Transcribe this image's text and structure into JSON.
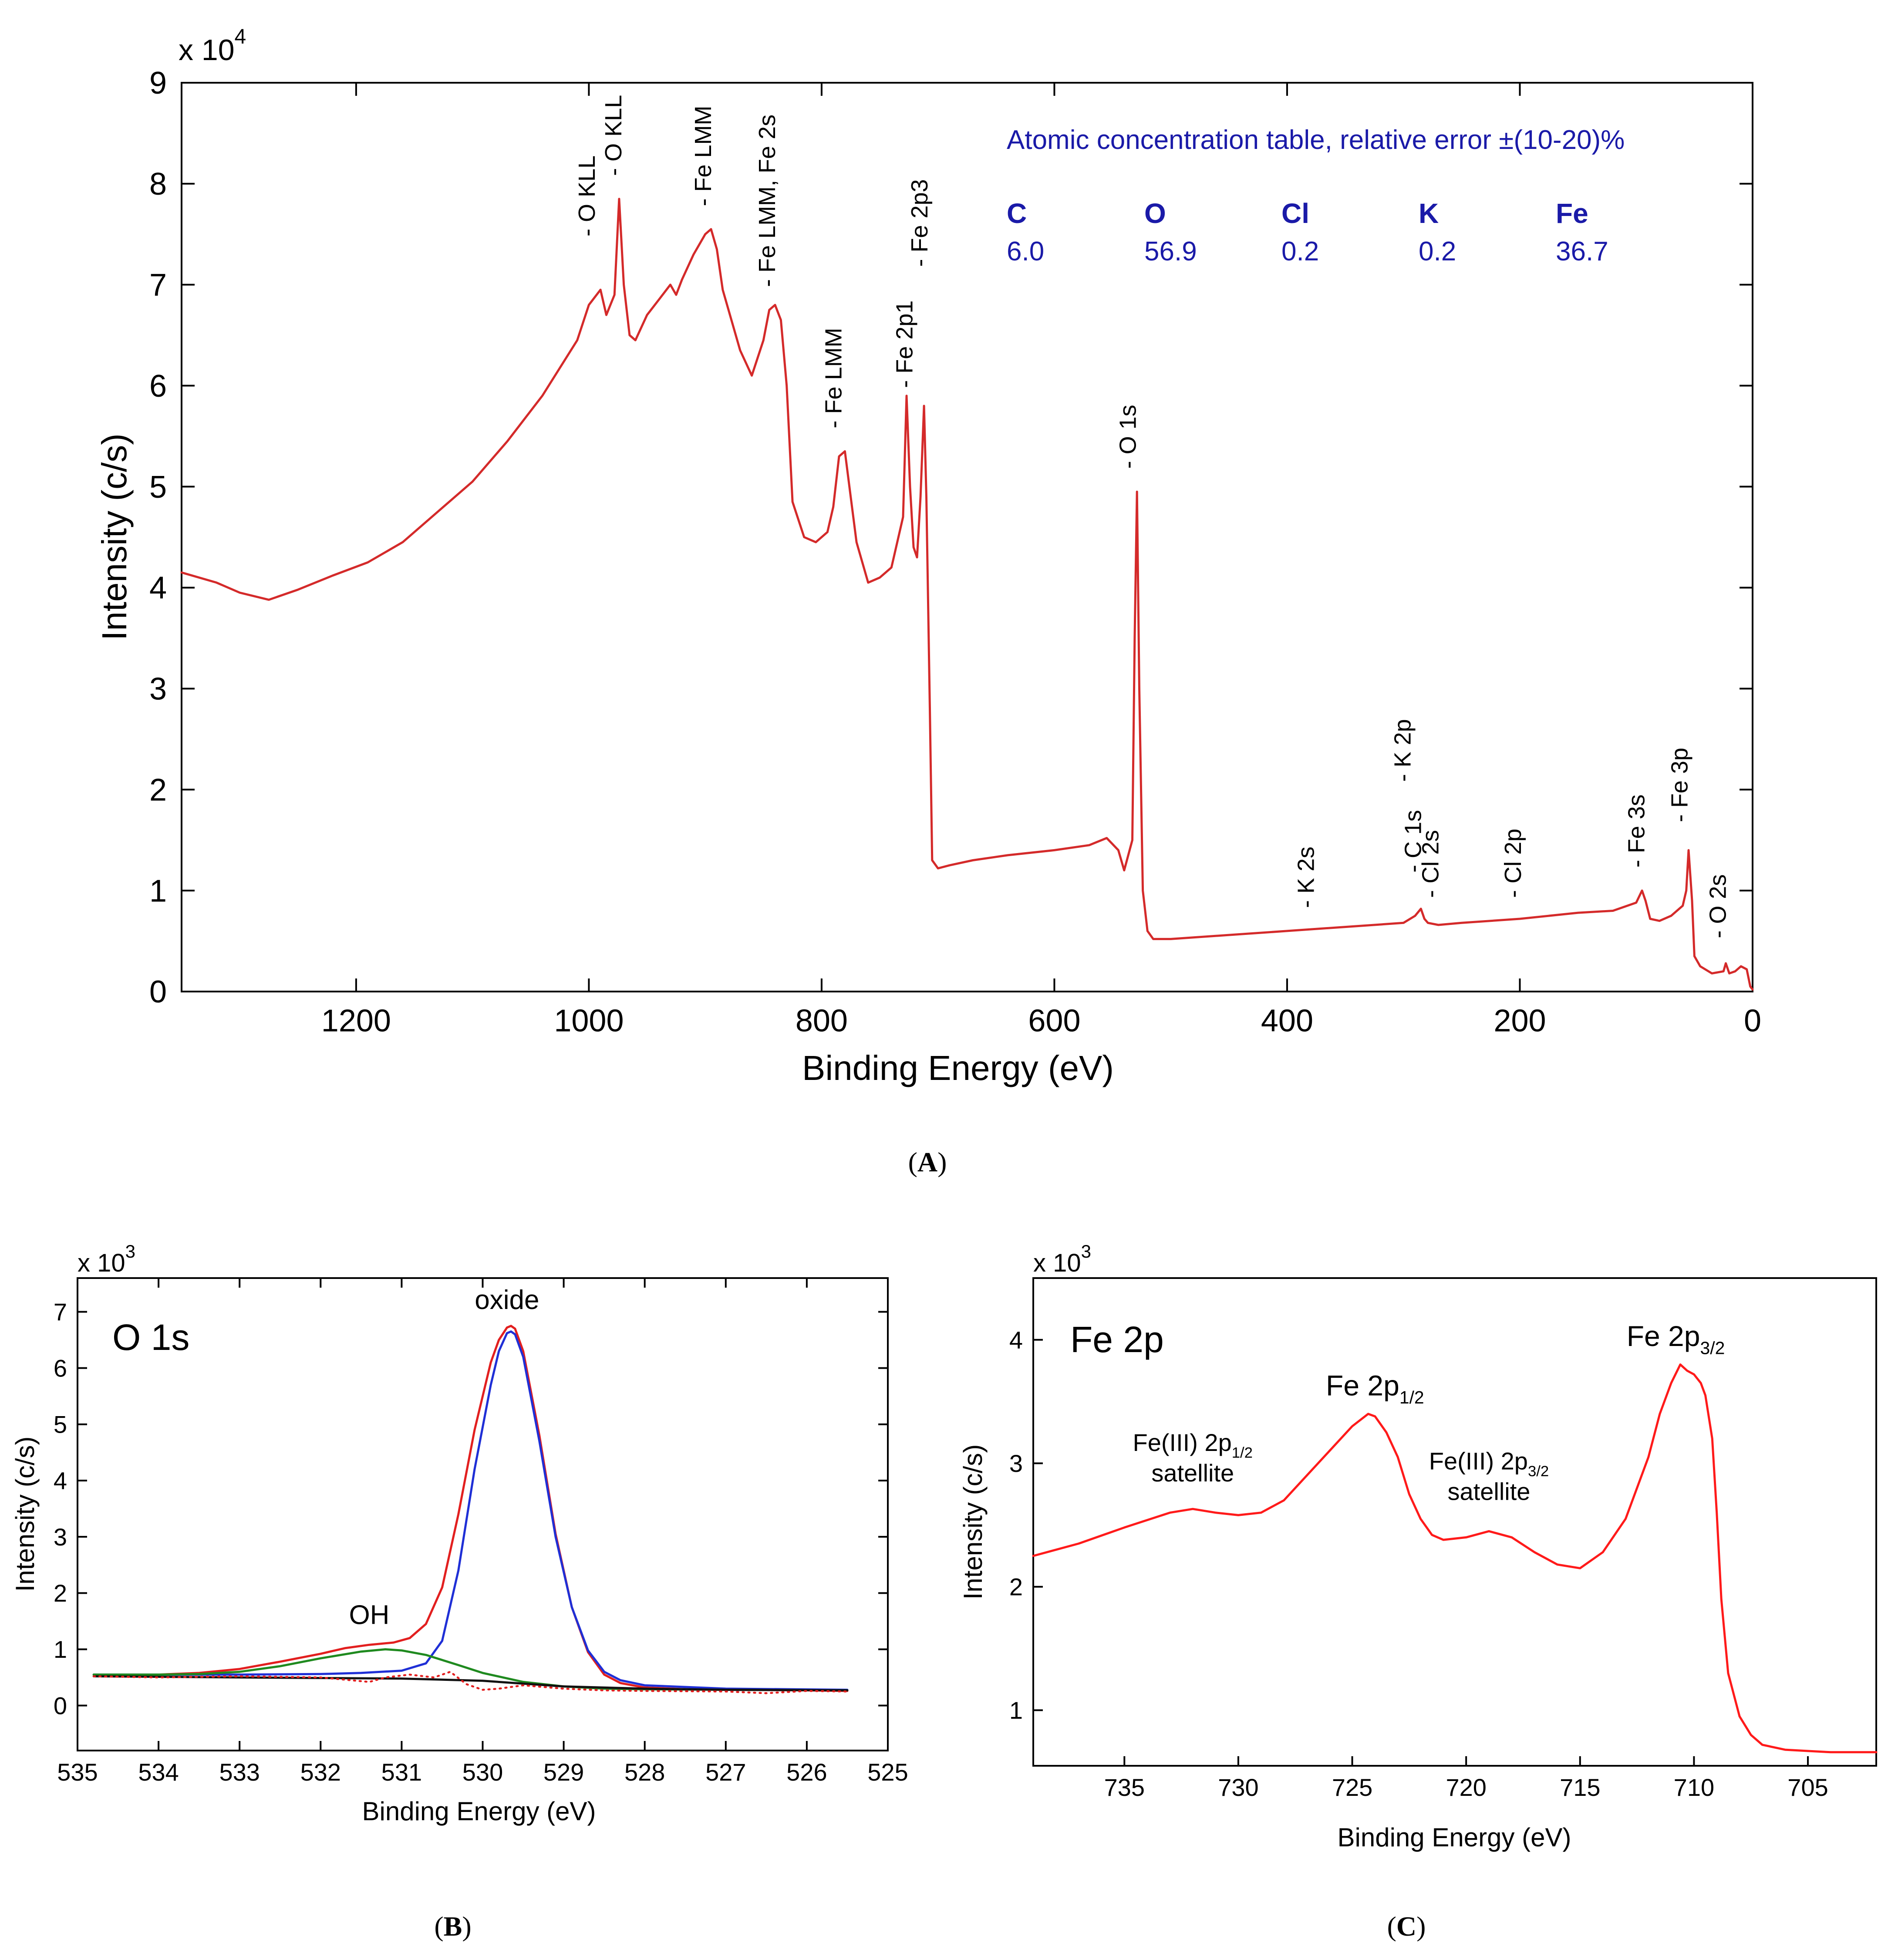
{
  "chart_data": [
    {
      "panel": "A",
      "caption_letter": "A",
      "type": "line",
      "xlabel": "Binding Energy (eV)",
      "ylabel": "Intensity (c/s)",
      "y_multiplier": "x 10",
      "y_multiplier_exp": "4",
      "xlim": [
        1350,
        0
      ],
      "ylim": [
        0,
        9
      ],
      "x_ticks": [
        1200,
        1000,
        800,
        600,
        400,
        200,
        0
      ],
      "y_ticks": [
        0,
        1,
        2,
        3,
        4,
        5,
        6,
        7,
        8,
        9
      ],
      "series": [
        {
          "name": "survey",
          "color": "#d42a2a",
          "x": [
            1350,
            1320,
            1300,
            1275,
            1250,
            1220,
            1190,
            1160,
            1130,
            1100,
            1070,
            1040,
            1010,
            1000,
            990,
            985,
            978,
            974,
            970,
            965,
            960,
            950,
            940,
            930,
            925,
            920,
            910,
            900,
            895,
            890,
            885,
            870,
            860,
            850,
            845,
            840,
            835,
            830,
            825,
            815,
            805,
            795,
            790,
            785,
            780,
            775,
            770,
            760,
            750,
            740,
            730,
            727,
            724,
            721,
            718,
            715,
            712,
            710,
            707,
            705,
            700,
            690,
            670,
            640,
            600,
            570,
            555,
            545,
            540,
            533,
            531,
            529,
            527,
            524,
            520,
            515,
            500,
            450,
            400,
            350,
            300,
            290,
            285,
            282,
            279,
            270,
            250,
            200,
            150,
            120,
            100,
            95,
            92,
            88,
            80,
            70,
            60,
            57,
            55,
            52,
            50,
            45,
            35,
            25,
            23,
            20,
            15,
            10,
            5,
            2,
            0
          ],
          "y": [
            4.15,
            4.05,
            3.95,
            3.88,
            3.98,
            4.12,
            4.25,
            4.45,
            4.75,
            5.05,
            5.45,
            5.9,
            6.45,
            6.8,
            6.95,
            6.7,
            6.9,
            7.85,
            7.0,
            6.5,
            6.45,
            6.7,
            6.85,
            7.0,
            6.9,
            7.05,
            7.3,
            7.5,
            7.55,
            7.35,
            6.95,
            6.35,
            6.1,
            6.45,
            6.75,
            6.8,
            6.65,
            6.0,
            4.85,
            4.5,
            4.45,
            4.55,
            4.8,
            5.3,
            5.35,
            4.9,
            4.45,
            4.05,
            4.1,
            4.2,
            4.7,
            5.9,
            5.0,
            4.4,
            4.3,
            4.9,
            5.8,
            4.9,
            2.8,
            1.3,
            1.22,
            1.25,
            1.3,
            1.35,
            1.4,
            1.45,
            1.52,
            1.4,
            1.2,
            1.5,
            3.5,
            4.95,
            3.0,
            1.0,
            0.6,
            0.52,
            0.52,
            0.56,
            0.6,
            0.64,
            0.68,
            0.75,
            0.82,
            0.72,
            0.68,
            0.66,
            0.68,
            0.72,
            0.78,
            0.8,
            0.88,
            1.0,
            0.9,
            0.72,
            0.7,
            0.75,
            0.85,
            1.0,
            1.4,
            0.9,
            0.35,
            0.25,
            0.18,
            0.2,
            0.28,
            0.18,
            0.2,
            0.25,
            0.22,
            0.05,
            0.02
          ]
        }
      ],
      "peak_labels": [
        {
          "x": 995,
          "y": 7.4,
          "text": "- O KLL"
        },
        {
          "x": 972,
          "y": 8.0,
          "text": "- O KLL"
        },
        {
          "x": 895,
          "y": 7.7,
          "text": "- Fe LMM"
        },
        {
          "x": 840,
          "y": 6.9,
          "text": "- Fe LMM, Fe 2s"
        },
        {
          "x": 783,
          "y": 5.5,
          "text": "- Fe LMM"
        },
        {
          "x": 722,
          "y": 5.9,
          "text": "- Fe 2p1"
        },
        {
          "x": 709,
          "y": 7.1,
          "text": "- Fe 2p3"
        },
        {
          "x": 530,
          "y": 5.1,
          "text": "- O 1s"
        },
        {
          "x": 377,
          "y": 0.75,
          "text": "- K 2s"
        },
        {
          "x": 294,
          "y": 2.0,
          "text": "- K 2p"
        },
        {
          "x": 285,
          "y": 1.1,
          "text": "- C 1s"
        },
        {
          "x": 270,
          "y": 0.85,
          "text": "- Cl 2s"
        },
        {
          "x": 199,
          "y": 0.85,
          "text": "- Cl 2p"
        },
        {
          "x": 93,
          "y": 1.15,
          "text": "- Fe 3s"
        },
        {
          "x": 56,
          "y": 1.6,
          "text": "- Fe 3p"
        },
        {
          "x": 23,
          "y": 0.45,
          "text": "- O 2s"
        }
      ]
    },
    {
      "panel": "B",
      "caption_letter": "B",
      "type": "line",
      "title": "O 1s",
      "xlabel": "Binding Energy (eV)",
      "ylabel": "Intensity (c/s)",
      "y_multiplier": "x 10",
      "y_multiplier_exp": "3",
      "xlim": [
        535,
        525
      ],
      "ylim": [
        -0.8,
        7.6
      ],
      "x_ticks": [
        535,
        534,
        533,
        532,
        531,
        530,
        529,
        528,
        527,
        526,
        525
      ],
      "y_ticks": [
        0,
        1,
        2,
        3,
        4,
        5,
        6,
        7
      ],
      "annotations": [
        {
          "text": "oxide",
          "x": 529.7,
          "y": 7.05
        },
        {
          "text": "OH",
          "x": 531.4,
          "y": 1.45
        }
      ],
      "series": [
        {
          "name": "envelope",
          "color": "#e21f1f",
          "x": [
            534.8,
            534.0,
            533.5,
            533.0,
            532.5,
            532.0,
            531.7,
            531.4,
            531.1,
            530.9,
            530.7,
            530.5,
            530.3,
            530.1,
            529.9,
            529.8,
            529.7,
            529.65,
            529.6,
            529.5,
            529.3,
            529.1,
            528.9,
            528.7,
            528.5,
            528.3,
            528.0,
            527.5,
            527.0,
            526.0,
            525.5
          ],
          "y": [
            0.55,
            0.55,
            0.58,
            0.65,
            0.78,
            0.92,
            1.02,
            1.08,
            1.12,
            1.2,
            1.45,
            2.1,
            3.4,
            4.9,
            6.1,
            6.5,
            6.72,
            6.75,
            6.7,
            6.3,
            4.8,
            3.05,
            1.75,
            0.95,
            0.55,
            0.4,
            0.32,
            0.29,
            0.28,
            0.27,
            0.26
          ]
        },
        {
          "name": "oxide",
          "color": "#1f2fd6",
          "x": [
            534.8,
            533.0,
            532.0,
            531.5,
            531.0,
            530.7,
            530.5,
            530.3,
            530.1,
            529.9,
            529.8,
            529.7,
            529.65,
            529.6,
            529.5,
            529.3,
            529.1,
            528.9,
            528.7,
            528.5,
            528.3,
            528.0,
            527.0,
            525.5
          ],
          "y": [
            0.55,
            0.55,
            0.56,
            0.58,
            0.62,
            0.75,
            1.15,
            2.4,
            4.2,
            5.7,
            6.3,
            6.62,
            6.65,
            6.6,
            6.2,
            4.7,
            3.0,
            1.75,
            0.98,
            0.6,
            0.45,
            0.36,
            0.3,
            0.28
          ]
        },
        {
          "name": "OH",
          "color": "#1f8a1f",
          "x": [
            534.8,
            534.0,
            533.5,
            533.0,
            532.5,
            532.0,
            531.5,
            531.2,
            531.0,
            530.7,
            530.3,
            530.0,
            529.5,
            529.0,
            528.5,
            528.0,
            527.0,
            525.5
          ],
          "y": [
            0.55,
            0.55,
            0.56,
            0.6,
            0.7,
            0.84,
            0.96,
            1.0,
            0.98,
            0.9,
            0.72,
            0.58,
            0.42,
            0.34,
            0.3,
            0.29,
            0.28,
            0.27
          ]
        },
        {
          "name": "background",
          "color": "#111111",
          "x": [
            534.8,
            533.0,
            531.0,
            530.0,
            529.0,
            528.0,
            527.0,
            525.5
          ],
          "y": [
            0.52,
            0.5,
            0.48,
            0.44,
            0.34,
            0.3,
            0.28,
            0.27
          ]
        },
        {
          "name": "residual",
          "color": "#e21f1f",
          "style": "dotted",
          "x": [
            534.8,
            534.0,
            533.0,
            532.0,
            531.4,
            531.2,
            530.9,
            530.6,
            530.4,
            530.2,
            530.0,
            529.8,
            529.5,
            529.0,
            528.5,
            528.0,
            527.0,
            526.5,
            526.0,
            525.5
          ],
          "y": [
            0.52,
            0.5,
            0.52,
            0.5,
            0.42,
            0.5,
            0.55,
            0.5,
            0.6,
            0.38,
            0.28,
            0.3,
            0.36,
            0.3,
            0.27,
            0.26,
            0.25,
            0.22,
            0.26,
            0.25
          ]
        }
      ]
    },
    {
      "panel": "C",
      "caption_letter": "C",
      "type": "line",
      "title": "Fe 2p",
      "xlabel": "Binding Energy (eV)",
      "ylabel": "Intensity (c/s)",
      "y_multiplier": "x 10",
      "y_multiplier_exp": "3",
      "xlim": [
        739,
        702
      ],
      "ylim": [
        0.55,
        4.5
      ],
      "x_ticks": [
        735,
        730,
        725,
        720,
        715,
        710,
        705
      ],
      "y_ticks": [
        1,
        2,
        3,
        4
      ],
      "annotations": [
        {
          "base": "Fe 2p",
          "sub": "1/2",
          "x": 724,
          "y": 3.55,
          "bold": true
        },
        {
          "base": "Fe 2p",
          "sub": "3/2",
          "x": 710.8,
          "y": 3.95,
          "bold": true
        },
        {
          "base": "Fe(III) 2p",
          "sub": "1/2",
          "line2": "satellite",
          "x": 732,
          "y": 3.1,
          "bold": false
        },
        {
          "base": "Fe(III) 2p",
          "sub": "3/2",
          "line2": "satellite",
          "x": 719,
          "y": 2.95,
          "bold": false
        }
      ],
      "series": [
        {
          "name": "Fe 2p",
          "color": "#ff1a1a",
          "x": [
            739,
            737,
            735,
            733,
            732,
            731,
            730,
            729,
            728,
            727,
            726,
            725,
            724.3,
            724,
            723.5,
            723,
            722.5,
            722,
            721.5,
            721,
            720,
            719,
            718,
            717,
            716,
            715,
            714,
            713,
            712,
            711.5,
            711,
            710.6,
            710.3,
            710,
            709.7,
            709.5,
            709.2,
            709,
            708.8,
            708.5,
            708,
            707.5,
            707,
            706,
            705,
            704,
            703,
            702
          ],
          "y": [
            2.25,
            2.35,
            2.48,
            2.6,
            2.63,
            2.6,
            2.58,
            2.6,
            2.7,
            2.9,
            3.1,
            3.3,
            3.4,
            3.38,
            3.25,
            3.05,
            2.75,
            2.55,
            2.42,
            2.38,
            2.4,
            2.45,
            2.4,
            2.28,
            2.18,
            2.15,
            2.28,
            2.55,
            3.05,
            3.4,
            3.65,
            3.8,
            3.75,
            3.72,
            3.65,
            3.55,
            3.2,
            2.6,
            1.9,
            1.3,
            0.95,
            0.8,
            0.72,
            0.68,
            0.67,
            0.66,
            0.66,
            0.66
          ]
        }
      ]
    }
  ],
  "concentration_table": {
    "title": "Atomic concentration table, relative error ±(10-20)%",
    "elements": [
      "C",
      "O",
      "Cl",
      "K",
      "Fe"
    ],
    "values": [
      "6.0",
      "56.9",
      "0.2",
      "0.2",
      "36.7"
    ]
  }
}
